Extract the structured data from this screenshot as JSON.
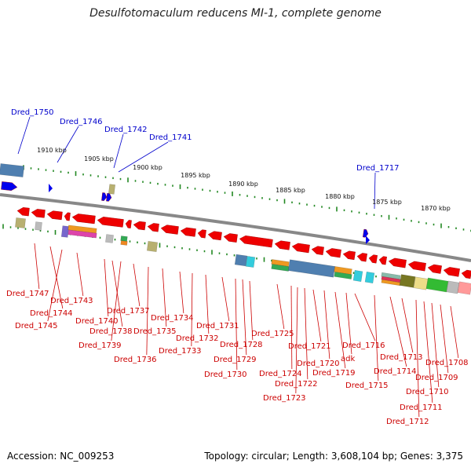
{
  "title": "Desulfotomaculum reducens MI-1, complete genome",
  "footer": {
    "accession": "Accession: NC_009253",
    "topology": "Topology: circular; Length: 3,608,104 bp; Genes: 3,375"
  },
  "colors": {
    "gene_forward": "#0000ee",
    "gene_reverse": "#ee0000",
    "label_forward": "#0000cc",
    "label_reverse": "#cc0000",
    "tick": "#228822",
    "backbone": "#888888"
  },
  "scale_labels": [
    "1910 kbp",
    "1905 kbp",
    "1900 kbp",
    "1895 kbp",
    "1890 kbp",
    "1885 kbp",
    "1880 kbp",
    "1875 kbp",
    "1870 kbp"
  ],
  "top_labels": [
    "Dred_1750",
    "Dred_1746",
    "Dred_1742",
    "Dred_1741",
    "Dred_1717"
  ],
  "bottom_labels": [
    "Dred_1747",
    "Dred_1744",
    "Dred_1745",
    "Dred_1743",
    "Dred_1740",
    "Dred_1738",
    "Dred_1739",
    "Dred_1737",
    "Dred_1736",
    "Dred_1735",
    "Dred_1734",
    "Dred_1733",
    "Dred_1732",
    "Dred_1731",
    "Dred_1730",
    "Dred_1729",
    "Dred_1728",
    "Dred_1725",
    "Dred_1724",
    "Dred_1723",
    "Dred_1722",
    "Dred_1721",
    "Dred_1720",
    "Dred_1719",
    "adk",
    "Dred_1716",
    "Dred_1715",
    "Dred_1714",
    "Dred_1713",
    "Dred_1712",
    "Dred_1711",
    "Dred_1710",
    "Dred_1709",
    "Dred_1708"
  ]
}
